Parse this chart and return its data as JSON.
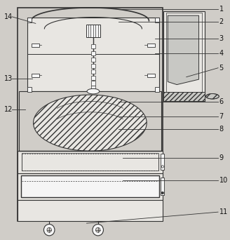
{
  "bg": "#d0cdc8",
  "lc": "#333333",
  "white": "#f5f5f5",
  "light_gray": "#e8e6e2",
  "fig_width": 3.28,
  "fig_height": 3.42,
  "label_fs": 7.0,
  "right_labels": {
    "1": [
      0.965,
      0.964,
      0.52,
      0.964
    ],
    "2": [
      0.965,
      0.91,
      0.52,
      0.91
    ],
    "3": [
      0.965,
      0.84,
      0.68,
      0.84
    ],
    "4": [
      0.965,
      0.778,
      0.68,
      0.778
    ],
    "5": [
      0.965,
      0.718,
      0.82,
      0.68
    ],
    "6": [
      0.965,
      0.575,
      0.52,
      0.575
    ],
    "7": [
      0.965,
      0.516,
      0.52,
      0.516
    ],
    "8": [
      0.965,
      0.462,
      0.52,
      0.462
    ],
    "9": [
      0.965,
      0.34,
      0.54,
      0.34
    ],
    "10": [
      0.965,
      0.248,
      0.54,
      0.248
    ],
    "11": [
      0.965,
      0.115,
      0.38,
      0.068
    ]
  },
  "left_labels": {
    "14": [
      0.015,
      0.932,
      0.155,
      0.904
    ],
    "13": [
      0.015,
      0.672,
      0.14,
      0.672
    ],
    "12": [
      0.015,
      0.545,
      0.11,
      0.545
    ]
  }
}
